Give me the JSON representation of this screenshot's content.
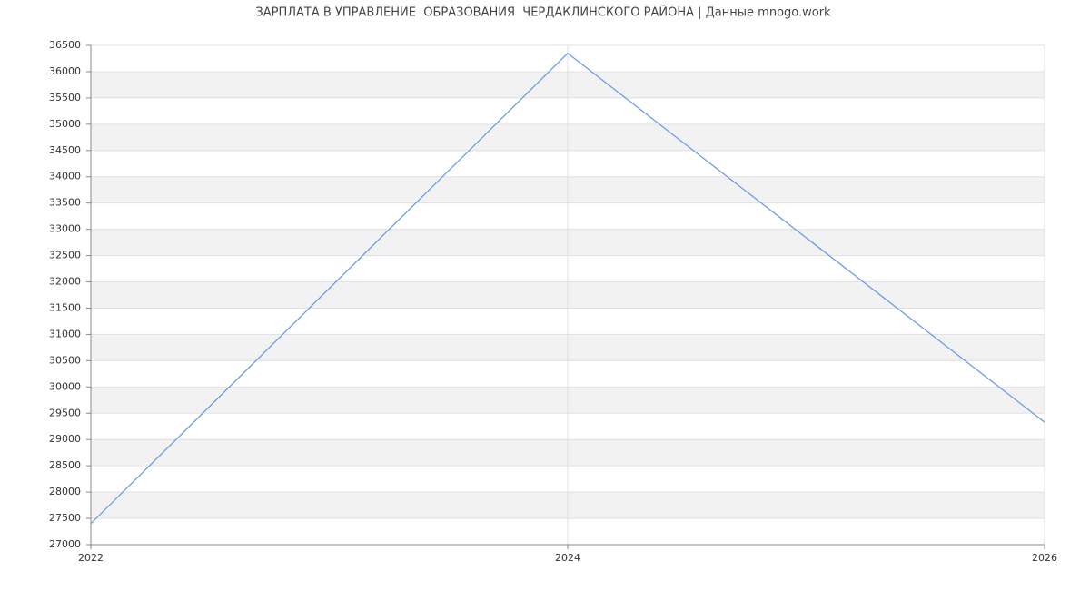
{
  "chart_data": {
    "type": "line",
    "title": "ЗАРПЛАТА В УПРАВЛЕНИЕ  ОБРАЗОВАНИЯ  ЧЕРДАКЛИНСКОГО РАЙОНА | Данные mnogo.work",
    "x": [
      2022,
      2024,
      2026
    ],
    "series": [
      {
        "color": "#6495ed",
        "values": [
          27400,
          36350,
          29330
        ]
      }
    ],
    "xlim": [
      2022,
      2026
    ],
    "xticks": [
      2022,
      2024,
      2026
    ],
    "ylim": [
      27000,
      36500
    ],
    "yticks": [
      27000,
      27500,
      28000,
      28500,
      29000,
      29500,
      30000,
      30500,
      31000,
      31500,
      32000,
      32500,
      33000,
      33500,
      34000,
      34500,
      35000,
      35500,
      36000,
      36500
    ],
    "grid": true
  }
}
